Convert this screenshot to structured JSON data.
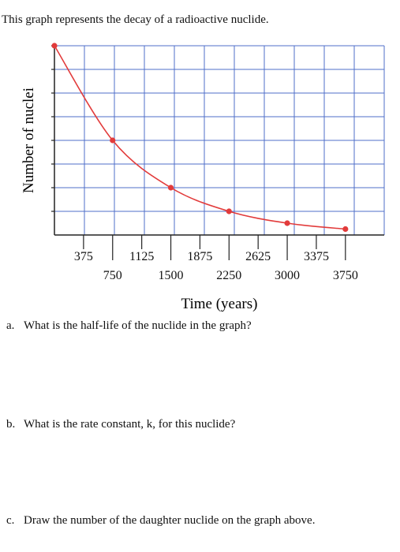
{
  "intro": "This graph represents the decay of a radioactive nuclide.",
  "questions": [
    {
      "letter": "a.",
      "text": "What is the half-life of the nuclide in the graph?"
    },
    {
      "letter": "b.",
      "text": "What is the rate constant, k, for this nuclide?"
    },
    {
      "letter": "c.",
      "text": "Draw the number of the daughter nuclide on the graph above."
    }
  ],
  "chart_data": {
    "type": "line",
    "title": "",
    "xlabel": "Time (years)",
    "ylabel": "Number of nuclei",
    "x_ticks_upper": [
      "375",
      "1125",
      "1875",
      "2625",
      "3375"
    ],
    "x_ticks_lower": [
      "750",
      "1500",
      "2250",
      "3000",
      "3750"
    ],
    "xlim": [
      0,
      4250
    ],
    "ylim": [
      0,
      8
    ],
    "grid": true,
    "series": [
      {
        "color": "#e23b3b",
        "x": [
          0,
          750,
          1500,
          2250,
          3000,
          3750
        ],
        "y": [
          8,
          4,
          2,
          1,
          0.5,
          0.25
        ]
      }
    ]
  }
}
